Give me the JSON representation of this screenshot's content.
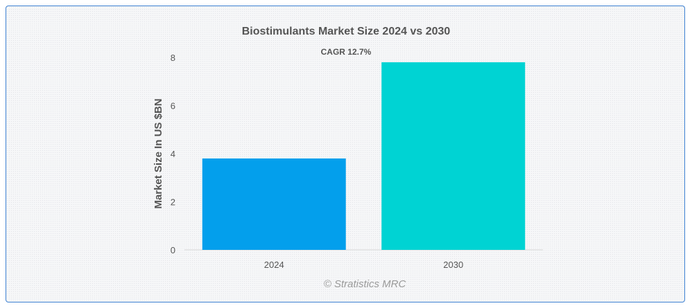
{
  "chart_data": {
    "type": "bar",
    "title": "Biostimulants Market Size 2024 vs 2030",
    "annotation": "CAGR 12.7%",
    "categories": [
      "2024",
      "2030"
    ],
    "values": [
      3.8,
      7.8
    ],
    "colors": [
      "#039fec",
      "#00d3d3"
    ],
    "xlabel": "",
    "ylabel": "Market Size In US $BN",
    "ylim": [
      0,
      8
    ],
    "yticks": [
      "0",
      "2",
      "4",
      "6",
      "8"
    ],
    "grid": false,
    "legend": "none",
    "credit": "© Stratistics MRC"
  }
}
